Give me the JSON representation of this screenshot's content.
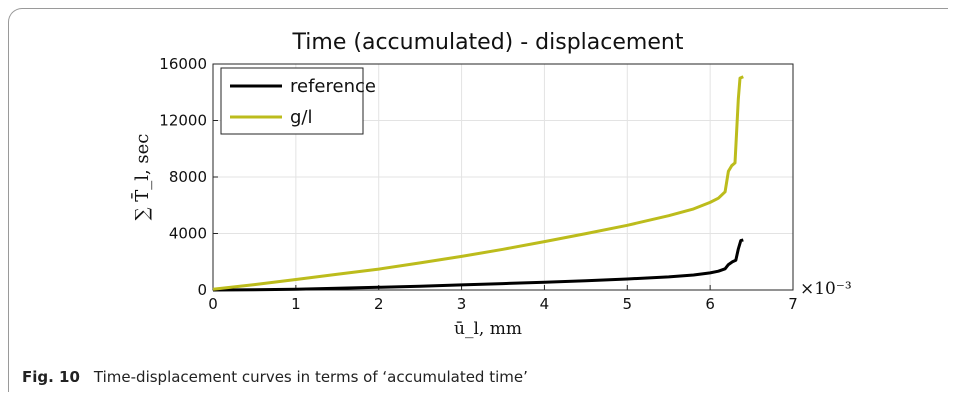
{
  "caption": {
    "label": "Fig. 10",
    "text": "Time-displacement curves in terms of ‘accumulated time’"
  },
  "chart_data": {
    "type": "line",
    "title": "Time (accumulated) - displacement",
    "xlabel": "ū_l, mm",
    "ylabel": "∑ T̄_l, sec",
    "x_exponent_label": "×10⁻³",
    "xlim": [
      0,
      7
    ],
    "ylim": [
      0,
      16000
    ],
    "x_ticks": [
      0,
      1,
      2,
      3,
      4,
      5,
      6,
      7
    ],
    "y_ticks": [
      0,
      4000,
      8000,
      12000,
      16000
    ],
    "grid": true,
    "legend_position": "top-left",
    "series": [
      {
        "name": "reference",
        "color": "#000000",
        "points": [
          [
            0,
            0
          ],
          [
            0.5,
            20
          ],
          [
            1,
            60
          ],
          [
            1.5,
            120
          ],
          [
            2,
            190
          ],
          [
            2.5,
            270
          ],
          [
            3,
            360
          ],
          [
            3.5,
            450
          ],
          [
            4,
            550
          ],
          [
            4.5,
            660
          ],
          [
            5,
            780
          ],
          [
            5.5,
            930
          ],
          [
            5.8,
            1060
          ],
          [
            6.0,
            1210
          ],
          [
            6.1,
            1330
          ],
          [
            6.18,
            1500
          ],
          [
            6.22,
            1800
          ],
          [
            6.27,
            2000
          ],
          [
            6.31,
            2100
          ],
          [
            6.34,
            2900
          ],
          [
            6.37,
            3500
          ],
          [
            6.4,
            3550
          ]
        ]
      },
      {
        "name": "g/l",
        "color": "#bcbc1c",
        "points": [
          [
            0,
            50
          ],
          [
            0.5,
            380
          ],
          [
            1,
            740
          ],
          [
            1.5,
            1110
          ],
          [
            2,
            1480
          ],
          [
            2.5,
            1920
          ],
          [
            3,
            2380
          ],
          [
            3.5,
            2880
          ],
          [
            4,
            3430
          ],
          [
            4.5,
            3990
          ],
          [
            5,
            4580
          ],
          [
            5.5,
            5260
          ],
          [
            5.8,
            5740
          ],
          [
            6.0,
            6200
          ],
          [
            6.1,
            6500
          ],
          [
            6.18,
            6950
          ],
          [
            6.22,
            8400
          ],
          [
            6.26,
            8800
          ],
          [
            6.3,
            9000
          ],
          [
            6.34,
            13500
          ],
          [
            6.36,
            15000
          ],
          [
            6.4,
            15100
          ]
        ]
      }
    ]
  }
}
